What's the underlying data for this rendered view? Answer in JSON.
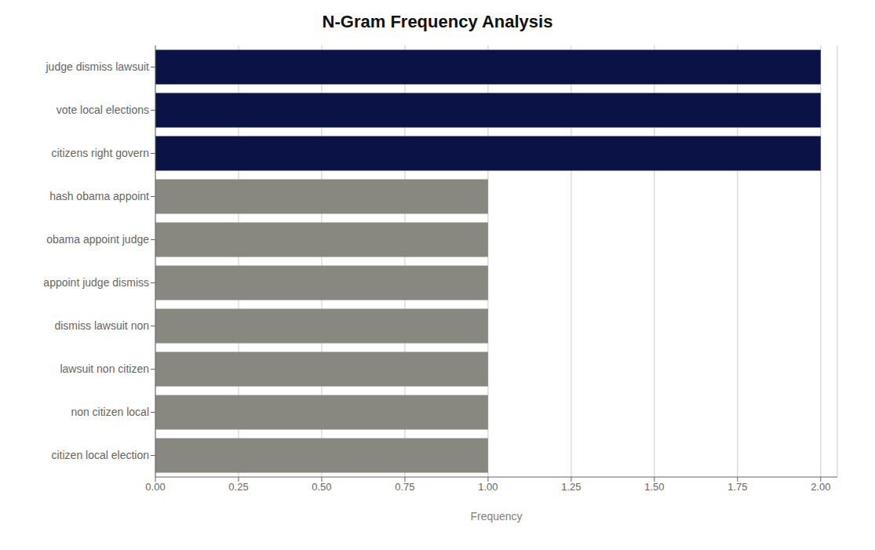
{
  "chart_data": {
    "type": "bar",
    "title": "N-Gram Frequency Analysis",
    "orientation": "horizontal",
    "categories": [
      "citizen local election",
      "non citizen local",
      "lawsuit non citizen",
      "dismiss lawsuit non",
      "appoint judge dismiss",
      "obama appoint judge",
      "hash obama appoint",
      "citizens right govern",
      "vote local elections",
      "judge dismiss lawsuit"
    ],
    "values": [
      1,
      1,
      1,
      1,
      1,
      1,
      1,
      2,
      2,
      2
    ],
    "colors": [
      "#888880",
      "#888880",
      "#888880",
      "#888880",
      "#888880",
      "#888880",
      "#888880",
      "#0b1245",
      "#0b1245",
      "#0b1245"
    ],
    "xlabel": "Frequency",
    "xlim": [
      0,
      2.05
    ],
    "xticks": [
      {
        "value": 0,
        "label": "0.00"
      },
      {
        "value": 0.25,
        "label": "0.25"
      },
      {
        "value": 0.5,
        "label": "0.50"
      },
      {
        "value": 0.75,
        "label": "0.75"
      },
      {
        "value": 1,
        "label": "1.00"
      },
      {
        "value": 1.25,
        "label": "1.25"
      },
      {
        "value": 1.5,
        "label": "1.50"
      },
      {
        "value": 1.75,
        "label": "1.75"
      },
      {
        "value": 2,
        "label": "2.00"
      }
    ],
    "grid": true
  }
}
